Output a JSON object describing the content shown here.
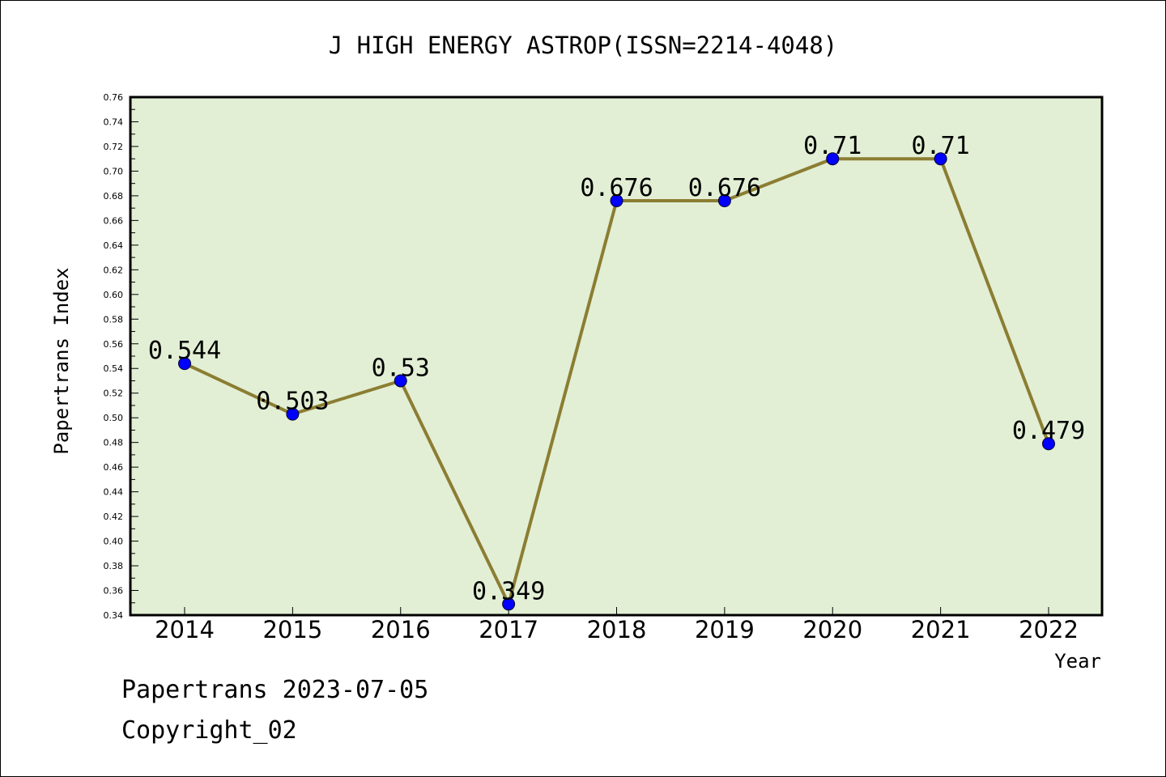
{
  "chart_data": {
    "type": "line",
    "title": "J HIGH ENERGY ASTROP(ISSN=2214-4048)",
    "xlabel": "Year",
    "ylabel": "Papertrans Index",
    "categories": [
      "2014",
      "2015",
      "2016",
      "2017",
      "2018",
      "2019",
      "2020",
      "2021",
      "2022"
    ],
    "series": [
      {
        "values": [
          0.544,
          0.503,
          0.53,
          0.349,
          0.676,
          0.676,
          0.71,
          0.71,
          0.479
        ],
        "labels": [
          "0.544",
          "0.503",
          "0.53",
          "0.349",
          "0.676",
          "0.676",
          "0.71",
          "0.71",
          "0.479"
        ]
      }
    ],
    "ylim": [
      0.34,
      0.76
    ],
    "yticks": [
      "0.34",
      "0.36",
      "0.38",
      "0.40",
      "0.42",
      "0.44",
      "0.46",
      "0.48",
      "0.50",
      "0.52",
      "0.54",
      "0.56",
      "0.58",
      "0.60",
      "0.62",
      "0.64",
      "0.66",
      "0.68",
      "0.70",
      "0.72",
      "0.74",
      "0.76"
    ],
    "grid": false,
    "colors": {
      "plot_background": "#e2efd5",
      "line": "#8b7d32",
      "marker": "#0000ff"
    }
  },
  "footer": {
    "line1": "Papertrans 2023-07-05",
    "line2": "Copyright_02"
  }
}
